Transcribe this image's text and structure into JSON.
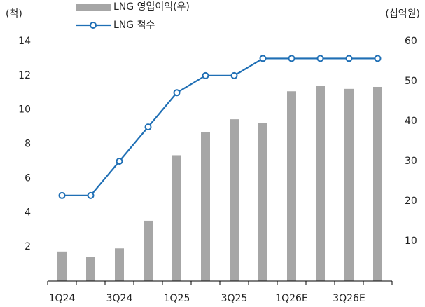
{
  "chart_data": {
    "type": "bar",
    "y_label": "(척)",
    "y2_label": "(십억원)",
    "categories": [
      "1Q24",
      null,
      "3Q24",
      null,
      "1Q25",
      null,
      "3Q25",
      null,
      "1Q26E",
      null,
      "3Q26E",
      null
    ],
    "series": [
      {
        "name": "LNG 영업이익(우)",
        "type": "bar",
        "axis": "y2",
        "color": "#a6a6a6",
        "values": [
          7.4,
          6.0,
          8.2,
          15.1,
          31.5,
          37.3,
          40.5,
          39.6,
          47.5,
          48.8,
          48.1,
          48.6
        ]
      },
      {
        "name": "LNG 척수",
        "type": "line",
        "axis": "y",
        "color": "#1f6fb5",
        "values": [
          5,
          5,
          7,
          9,
          11,
          12,
          12,
          13,
          13,
          13,
          13,
          13
        ]
      }
    ],
    "ylim": [
      0,
      14
    ],
    "yticks": [
      2,
      4,
      6,
      8,
      10,
      12,
      14
    ],
    "y2lim": [
      0,
      60
    ],
    "y2ticks": [
      10,
      20,
      30,
      40,
      50,
      60
    ],
    "grid": false
  }
}
